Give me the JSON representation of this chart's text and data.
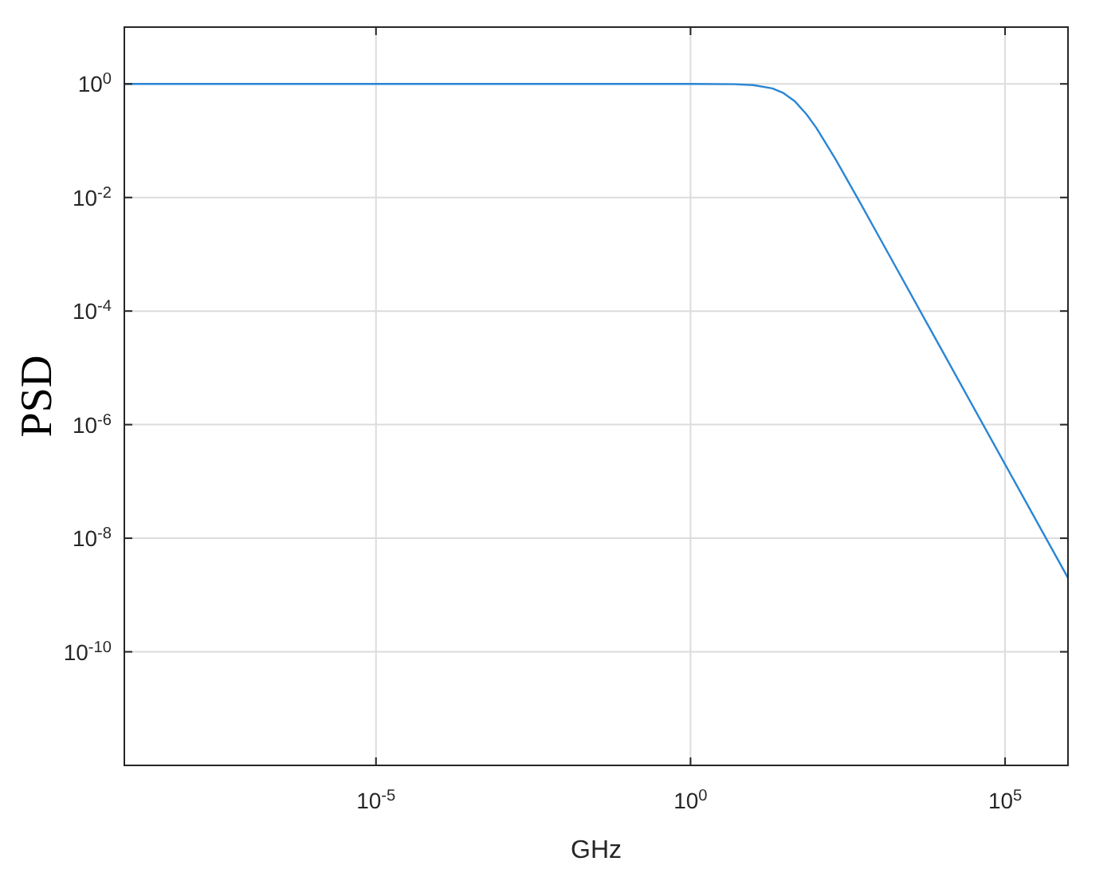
{
  "chart_data": {
    "type": "line",
    "xlabel": "GHz",
    "ylabel": "PSD",
    "log": "xy",
    "grid": true,
    "xlim": [
      1e-09,
      1000000.0
    ],
    "ylim": [
      1e-12,
      10
    ],
    "xticks": [
      {
        "value": 1e-05,
        "label": "10$^{-5}$"
      },
      {
        "value": 1,
        "label": "10$^{0}$"
      },
      {
        "value": 100000,
        "label": "10$^{5}$"
      }
    ],
    "yticks": [
      {
        "value": 1,
        "label": "10$^{0}$"
      },
      {
        "value": 0.01,
        "label": "10$^{-2}$"
      },
      {
        "value": 0.0001,
        "label": "10$^{-4}$"
      },
      {
        "value": 1e-06,
        "label": "10$^{-6}$"
      },
      {
        "value": 1e-08,
        "label": "10$^{-8}$"
      },
      {
        "value": 1e-10,
        "label": "10$^{-10}$"
      }
    ],
    "series": [
      {
        "color": "#2a86d4",
        "x": [
          1e-09,
          1e-05,
          1,
          5,
          10,
          20,
          30,
          45,
          70,
          100,
          200,
          500,
          1000,
          10000,
          100000,
          1000000
        ],
        "values": [
          1,
          1,
          1,
          0.988,
          0.953,
          0.835,
          0.69,
          0.5,
          0.29,
          0.168,
          0.048,
          0.008,
          0.002,
          2e-05,
          2e-07,
          2e-09
        ]
      }
    ]
  }
}
